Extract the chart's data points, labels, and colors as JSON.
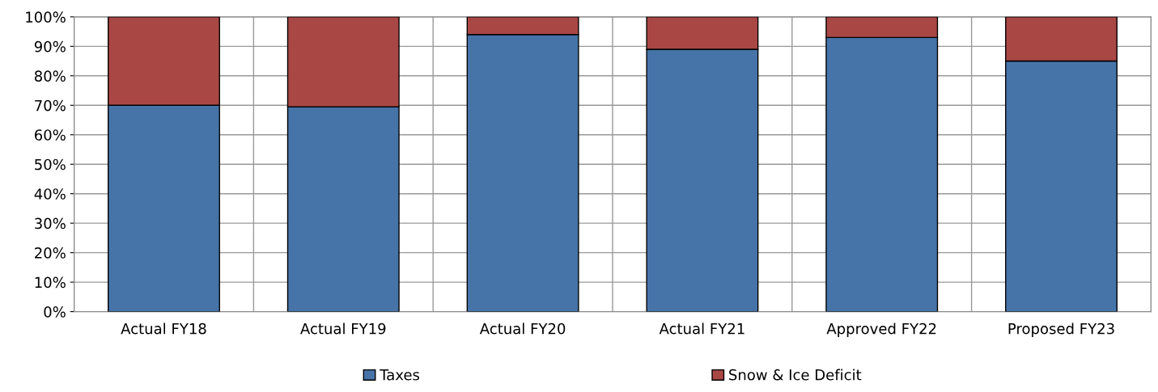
{
  "chart_data": {
    "type": "bar",
    "stacked": true,
    "categories": [
      "Actual FY18",
      "Actual FY19",
      "Actual FY20",
      "Actual FY21",
      "Approved FY22",
      "Proposed FY23"
    ],
    "series": [
      {
        "name": "Taxes",
        "color": "#4674a8",
        "values": [
          70,
          69.5,
          94,
          89,
          93,
          85
        ]
      },
      {
        "name": "Snow & Ice Deficit",
        "color": "#a94745",
        "values": [
          30,
          30.5,
          6,
          11,
          7,
          15
        ]
      }
    ],
    "ylim": [
      0,
      100
    ],
    "yticks": [
      {
        "value": 0,
        "label": "0%"
      },
      {
        "value": 10,
        "label": "10%"
      },
      {
        "value": 20,
        "label": "20%"
      },
      {
        "value": 30,
        "label": "30%"
      },
      {
        "value": 40,
        "label": "40%"
      },
      {
        "value": 50,
        "label": "50%"
      },
      {
        "value": 60,
        "label": "60%"
      },
      {
        "value": 70,
        "label": "70%"
      },
      {
        "value": 80,
        "label": "80%"
      },
      {
        "value": 90,
        "label": "90%"
      },
      {
        "value": 100,
        "label": "100%"
      }
    ],
    "grid": true,
    "legend": "bottom"
  }
}
